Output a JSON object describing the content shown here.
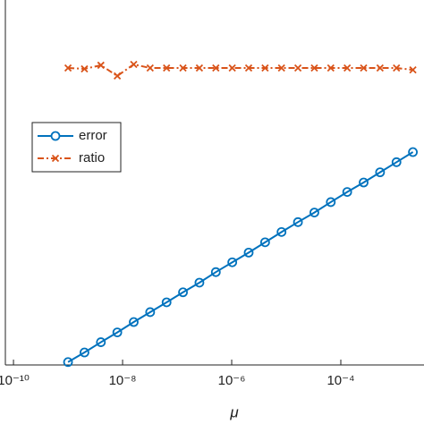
{
  "chart_data": {
    "type": "line",
    "xlabel": "μ",
    "xscale": "log",
    "yscale": "log",
    "x": [
      1e-09,
      2e-09,
      4e-09,
      8e-09,
      1.6e-08,
      3.2e-08,
      6.4e-08,
      1.28e-07,
      2.56e-07,
      5.12e-07,
      1.024e-06,
      2.048e-06,
      4.096e-06,
      8.192e-06,
      1.6384e-05,
      3.2768e-05,
      6.5536e-05,
      0.000131072,
      0.000262144,
      0.000524288,
      0.001048576,
      0.002097152
    ],
    "series": [
      {
        "name": "error",
        "color": "#0072BD",
        "marker": "circle",
        "dash": "solid",
        "values": [
          1.2e-10,
          2.2e-10,
          4.2e-10,
          7.8e-10,
          1.5e-09,
          2.8e-09,
          5.2e-09,
          9.8e-09,
          1.8e-08,
          3.5e-08,
          6.5e-08,
          1.2e-07,
          2.3e-07,
          4.4e-07,
          8.2e-07,
          1.5e-06,
          2.9e-06,
          5.5e-06,
          1e-05,
          1.9e-05,
          3.6e-05,
          6.8e-05
        ]
      },
      {
        "name": "ratio",
        "color": "#D95319",
        "marker": "x",
        "dash": "dashdot",
        "values": [
          0.0137,
          0.013,
          0.0163,
          0.0083,
          0.0172,
          0.0137,
          0.0137,
          0.0137,
          0.0137,
          0.0137,
          0.0137,
          0.0137,
          0.0137,
          0.0137,
          0.0137,
          0.0137,
          0.0137,
          0.0137,
          0.0137,
          0.0137,
          0.0137,
          0.0122
        ]
      }
    ],
    "xlim": [
      7.1e-11,
      0.00335
    ],
    "ylim": [
      1e-10,
      1
    ],
    "xticks": [
      {
        "value": 1e-10,
        "label": "10⁻¹⁰"
      },
      {
        "value": 1e-08,
        "label": "10⁻⁸"
      },
      {
        "value": 1e-06,
        "label": "10⁻⁶"
      },
      {
        "value": 0.0001,
        "label": "10⁻⁴"
      }
    ],
    "legend": "upper left"
  }
}
